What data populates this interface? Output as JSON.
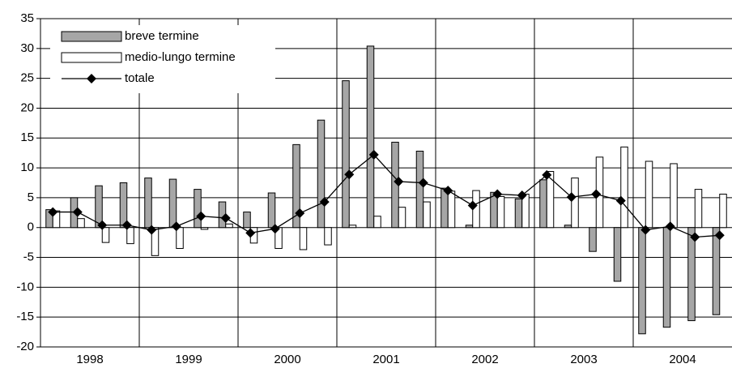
{
  "chart_data": {
    "type": "bar",
    "categories": [
      null,
      null,
      null,
      null,
      null,
      null,
      null,
      null,
      null,
      null,
      null,
      null,
      null,
      null,
      null,
      null,
      null,
      null,
      null,
      null,
      null,
      null,
      null,
      null,
      null,
      null,
      null,
      null
    ],
    "groups": [
      "1998",
      "1999",
      "2000",
      "2001",
      "2002",
      "2003",
      "2004"
    ],
    "series": [
      {
        "name": "breve termine",
        "type": "bar",
        "color": "#a6a6a6",
        "values": [
          3,
          5,
          7,
          7.5,
          8.3,
          8.1,
          6.4,
          4.3,
          2.6,
          5.8,
          13.9,
          18,
          24.6,
          30.4,
          14.3,
          12.8,
          6.6,
          0.4,
          5.9,
          4.8,
          8,
          0.4,
          -4,
          -9,
          -17.8,
          -16.7,
          -15.6,
          -14.6
        ]
      },
      {
        "name": "medio-lungo termine",
        "type": "bar",
        "color": "#ffffff",
        "values": [
          2.8,
          1.5,
          -2.5,
          -2.7,
          -4.7,
          -3.5,
          -0.3,
          0.6,
          -2.6,
          -3.5,
          -3.7,
          -2.9,
          0.4,
          1.9,
          3.4,
          4.3,
          6.1,
          6.2,
          5.2,
          5.6,
          9.4,
          8.3,
          11.8,
          13.5,
          11.1,
          10.7,
          6.4,
          5.6
        ]
      },
      {
        "name": "totale",
        "type": "line",
        "color": "#000000",
        "values": [
          2.6,
          2.6,
          0.4,
          0.4,
          -0.4,
          0.2,
          1.9,
          1.6,
          -0.9,
          -0.2,
          2.4,
          4.3,
          8.9,
          12.2,
          7.7,
          7.5,
          6.2,
          3.7,
          5.6,
          5.4,
          8.8,
          5.1,
          5.6,
          4.5,
          -0.4,
          0.2,
          -1.6,
          -1.3
        ]
      }
    ],
    "ylim": [
      -20,
      35
    ],
    "yticks": [
      -20,
      -15,
      -10,
      -5,
      0,
      5,
      10,
      15,
      20,
      25,
      30,
      35
    ],
    "grid": true,
    "legend": "upper left"
  }
}
